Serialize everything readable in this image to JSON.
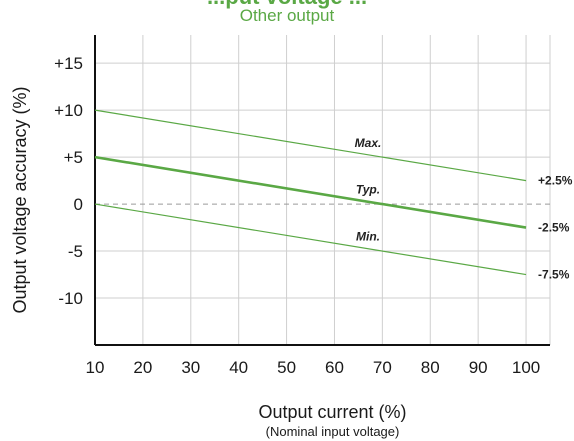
{
  "chart_data": {
    "type": "line",
    "title": "...put voltage ...",
    "subtitle": "Other output",
    "xlabel": "Output current (%)",
    "xlabel_note": "(Nominal input voltage)",
    "ylabel": "Output voltage accuracy (%)",
    "xlim": [
      10,
      105
    ],
    "ylim": [
      -15,
      18
    ],
    "x_ticks": [
      10,
      20,
      30,
      40,
      50,
      60,
      70,
      80,
      90,
      100
    ],
    "x_tick_labels": [
      "10",
      "20",
      "30",
      "40",
      "50",
      "60",
      "70",
      "80",
      "90",
      "100"
    ],
    "y_ticks": [
      15,
      10,
      5,
      0,
      -5,
      -10
    ],
    "y_tick_labels": [
      "+15",
      "+10",
      "+5",
      "0",
      "-5",
      "-10"
    ],
    "grid": true,
    "reference_line": {
      "y": 0,
      "style": "dashed"
    },
    "series": [
      {
        "name": "Max.",
        "x": [
          10,
          100
        ],
        "values": [
          10,
          2.5
        ],
        "end_label": "+2.5%",
        "color": "#5aa845",
        "width": "thin"
      },
      {
        "name": "Typ.",
        "x": [
          10,
          100
        ],
        "values": [
          5,
          -2.5
        ],
        "end_label": "-2.5%",
        "color": "#5aa845",
        "width": "thick"
      },
      {
        "name": "Min.",
        "x": [
          10,
          100
        ],
        "values": [
          0,
          -7.5
        ],
        "end_label": "-7.5%",
        "color": "#5aa845",
        "width": "thin"
      }
    ]
  }
}
